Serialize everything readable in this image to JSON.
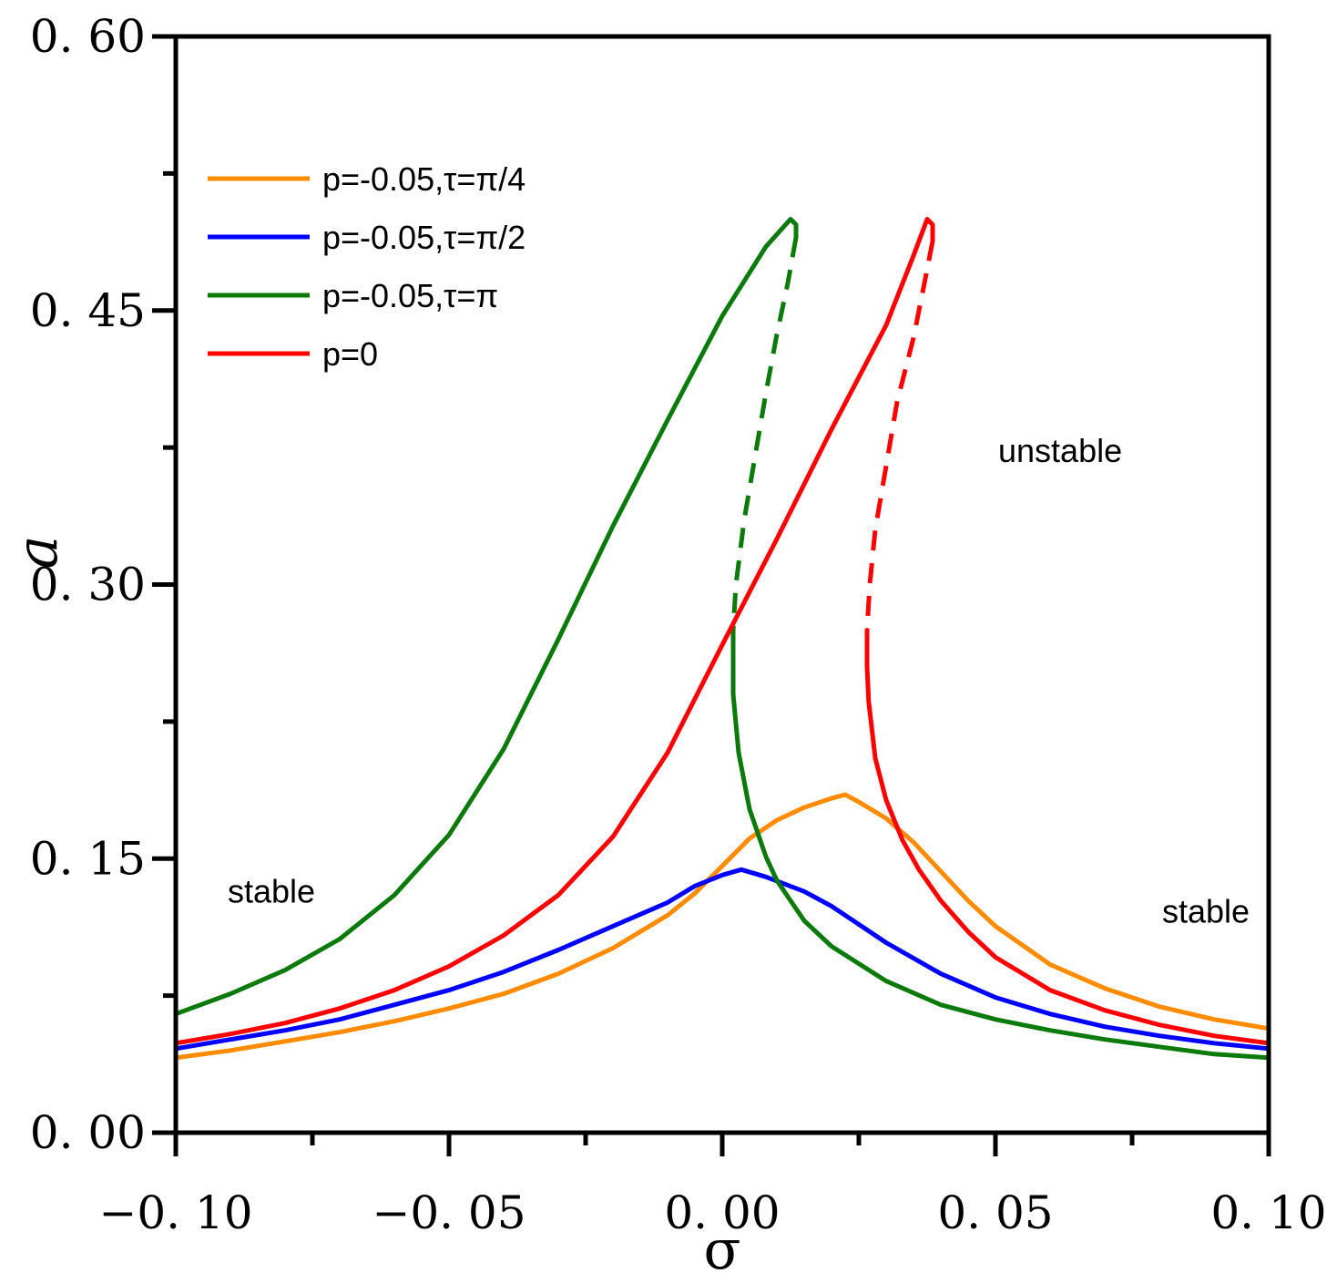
{
  "chart_data": {
    "type": "line",
    "title": "",
    "xlabel": "σ",
    "ylabel": "a",
    "xlim": [
      -0.1,
      0.1
    ],
    "ylim": [
      0.0,
      0.6
    ],
    "xticks": [
      -0.1,
      -0.05,
      0.0,
      0.05,
      0.1
    ],
    "xtick_labels": [
      "−0. 10",
      "−0. 05",
      "0. 00",
      "0. 05",
      "0. 10"
    ],
    "yticks": [
      0.0,
      0.15,
      0.3,
      0.45,
      0.6
    ],
    "ytick_labels": [
      "0. 00",
      "0. 15",
      "0. 30",
      "0. 45",
      "0. 60"
    ],
    "grid": false,
    "legend_position": "top-left",
    "annotations": [
      {
        "text": "stable",
        "x": -0.0905,
        "y": 0.126
      },
      {
        "text": "unstable",
        "x": 0.0505,
        "y": 0.367
      },
      {
        "text": "stable",
        "x": 0.0805,
        "y": 0.115
      }
    ],
    "series": [
      {
        "name": "p=-0.05,τ=π/4",
        "color": "#ff8c00",
        "points": [
          [
            -0.1,
            0.041
          ],
          [
            -0.09,
            0.045
          ],
          [
            -0.08,
            0.05
          ],
          [
            -0.07,
            0.055
          ],
          [
            -0.06,
            0.061
          ],
          [
            -0.05,
            0.068
          ],
          [
            -0.04,
            0.076
          ],
          [
            -0.03,
            0.087
          ],
          [
            -0.02,
            0.101
          ],
          [
            -0.01,
            0.119
          ],
          [
            -0.005,
            0.131
          ],
          [
            0.0,
            0.146
          ],
          [
            0.005,
            0.161
          ],
          [
            0.01,
            0.171
          ],
          [
            0.015,
            0.178
          ],
          [
            0.02,
            0.183
          ],
          [
            0.0225,
            0.185
          ],
          [
            0.025,
            0.181
          ],
          [
            0.03,
            0.172
          ],
          [
            0.035,
            0.159
          ],
          [
            0.04,
            0.143
          ],
          [
            0.045,
            0.127
          ],
          [
            0.05,
            0.113
          ],
          [
            0.06,
            0.092
          ],
          [
            0.07,
            0.079
          ],
          [
            0.08,
            0.069
          ],
          [
            0.09,
            0.062
          ],
          [
            0.1,
            0.057
          ]
        ],
        "dashed_points": []
      },
      {
        "name": "p=-0.05,τ=π/2",
        "color": "#0000ff",
        "points": [
          [
            -0.1,
            0.046
          ],
          [
            -0.09,
            0.051
          ],
          [
            -0.08,
            0.056
          ],
          [
            -0.07,
            0.062
          ],
          [
            -0.06,
            0.07
          ],
          [
            -0.05,
            0.078
          ],
          [
            -0.04,
            0.088
          ],
          [
            -0.03,
            0.1
          ],
          [
            -0.02,
            0.113
          ],
          [
            -0.01,
            0.126
          ],
          [
            -0.005,
            0.135
          ],
          [
            0.0,
            0.141
          ],
          [
            0.0035,
            0.144
          ],
          [
            0.008,
            0.14
          ],
          [
            0.015,
            0.132
          ],
          [
            0.02,
            0.124
          ],
          [
            0.025,
            0.114
          ],
          [
            0.03,
            0.104
          ],
          [
            0.04,
            0.087
          ],
          [
            0.05,
            0.074
          ],
          [
            0.06,
            0.065
          ],
          [
            0.07,
            0.058
          ],
          [
            0.08,
            0.053
          ],
          [
            0.09,
            0.049
          ],
          [
            0.1,
            0.046
          ]
        ],
        "dashed_points": []
      },
      {
        "name": "p=-0.05,τ=π",
        "color": "#0b7a0b",
        "points": [
          [
            -0.1,
            0.065
          ],
          [
            -0.09,
            0.076
          ],
          [
            -0.08,
            0.089
          ],
          [
            -0.07,
            0.106
          ],
          [
            -0.06,
            0.13
          ],
          [
            -0.05,
            0.163
          ],
          [
            -0.04,
            0.21
          ],
          [
            -0.03,
            0.27
          ],
          [
            -0.02,
            0.332
          ],
          [
            -0.01,
            0.39
          ],
          [
            0.0,
            0.447
          ],
          [
            0.008,
            0.485
          ],
          [
            0.0125,
            0.5
          ],
          [
            0.0135,
            0.497
          ],
          [
            0.0135,
            0.49
          ]
        ],
        "dashed_points": [
          [
            0.0135,
            0.49
          ],
          [
            0.012,
            0.465
          ],
          [
            0.01,
            0.437
          ],
          [
            0.008,
            0.405
          ],
          [
            0.006,
            0.37
          ],
          [
            0.004,
            0.335
          ],
          [
            0.0025,
            0.3
          ],
          [
            0.002,
            0.275
          ]
        ],
        "lower_points": [
          [
            0.002,
            0.275
          ],
          [
            0.002,
            0.255
          ],
          [
            0.002,
            0.24
          ],
          [
            0.003,
            0.208
          ],
          [
            0.005,
            0.177
          ],
          [
            0.008,
            0.151
          ],
          [
            0.01,
            0.138
          ],
          [
            0.015,
            0.116
          ],
          [
            0.02,
            0.102
          ],
          [
            0.03,
            0.083
          ],
          [
            0.04,
            0.07
          ],
          [
            0.05,
            0.062
          ],
          [
            0.06,
            0.056
          ],
          [
            0.07,
            0.051
          ],
          [
            0.08,
            0.047
          ],
          [
            0.09,
            0.043
          ],
          [
            0.1,
            0.041
          ]
        ]
      },
      {
        "name": "p=0",
        "color": "#ff0000",
        "points": [
          [
            -0.1,
            0.049
          ],
          [
            -0.09,
            0.054
          ],
          [
            -0.08,
            0.06
          ],
          [
            -0.07,
            0.068
          ],
          [
            -0.06,
            0.078
          ],
          [
            -0.05,
            0.091
          ],
          [
            -0.04,
            0.108
          ],
          [
            -0.03,
            0.13
          ],
          [
            -0.02,
            0.162
          ],
          [
            -0.01,
            0.208
          ],
          [
            0.0,
            0.267
          ],
          [
            0.01,
            0.325
          ],
          [
            0.02,
            0.385
          ],
          [
            0.03,
            0.442
          ],
          [
            0.035,
            0.48
          ],
          [
            0.0375,
            0.5
          ],
          [
            0.0385,
            0.497
          ],
          [
            0.0385,
            0.488
          ]
        ],
        "dashed_points": [
          [
            0.0385,
            0.488
          ],
          [
            0.037,
            0.465
          ],
          [
            0.035,
            0.435
          ],
          [
            0.032,
            0.4
          ],
          [
            0.03,
            0.365
          ],
          [
            0.028,
            0.33
          ],
          [
            0.027,
            0.3
          ],
          [
            0.0265,
            0.275
          ]
        ],
        "lower_points": [
          [
            0.0265,
            0.275
          ],
          [
            0.0265,
            0.255
          ],
          [
            0.0268,
            0.236
          ],
          [
            0.028,
            0.205
          ],
          [
            0.03,
            0.182
          ],
          [
            0.033,
            0.16
          ],
          [
            0.036,
            0.144
          ],
          [
            0.04,
            0.127
          ],
          [
            0.045,
            0.11
          ],
          [
            0.05,
            0.096
          ],
          [
            0.06,
            0.078
          ],
          [
            0.07,
            0.067
          ],
          [
            0.08,
            0.059
          ],
          [
            0.09,
            0.053
          ],
          [
            0.1,
            0.049
          ]
        ]
      }
    ]
  }
}
